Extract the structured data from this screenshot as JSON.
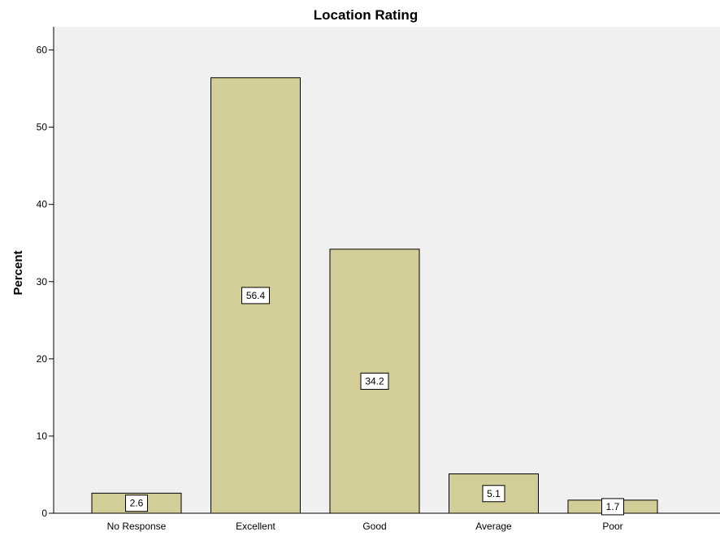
{
  "chart_data": {
    "type": "bar",
    "title": "Location Rating",
    "xlabel": "",
    "ylabel": "Percent",
    "categories": [
      "No Response",
      "Excellent",
      "Good",
      "Average",
      "Poor"
    ],
    "values": [
      2.6,
      56.4,
      34.2,
      5.1,
      1.7
    ],
    "data_labels": [
      "2.6",
      "56.4",
      "34.2",
      "5.1",
      "1.7"
    ],
    "y_ticks": [
      0,
      10,
      20,
      30,
      40,
      50,
      60
    ],
    "ylim": [
      0,
      63
    ],
    "grid": false,
    "legend": "none",
    "colors": {
      "plot_background": "#f0f0f0",
      "bar_fill": "#d3ce97",
      "bar_stroke": "#000000",
      "label_box_fill": "#ffffff"
    }
  }
}
